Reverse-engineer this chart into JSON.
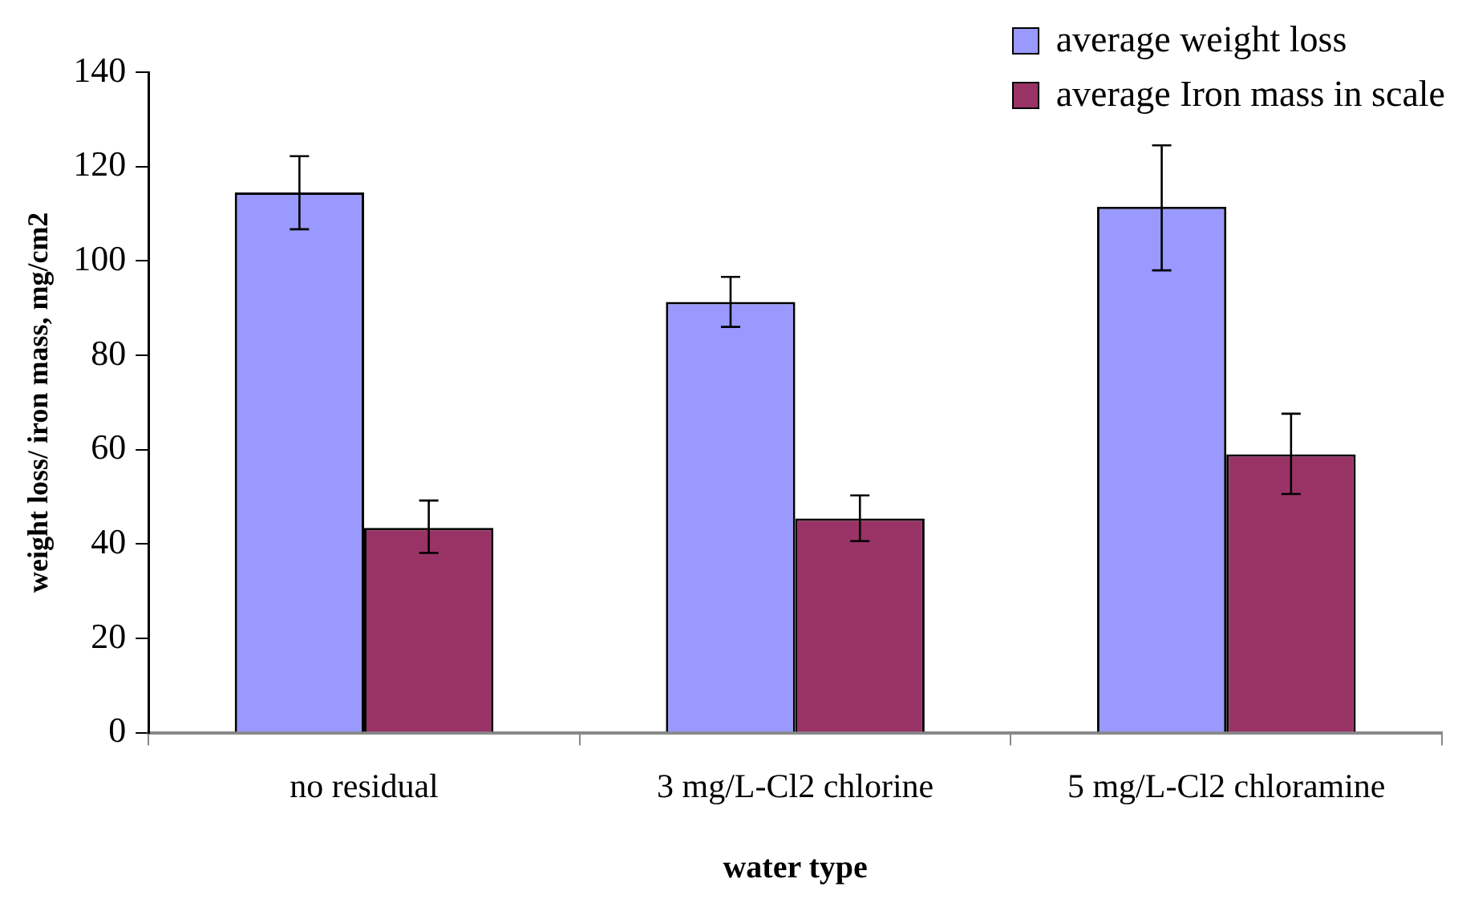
{
  "chart_data": {
    "type": "bar",
    "xlabel": "water type",
    "ylabel": "weight loss/ iron mass, mg/cm2",
    "categories": [
      "no residual",
      "3 mg/L-Cl2 chlorine",
      "5 mg/L-Cl2 chloramine"
    ],
    "series": [
      {
        "name": "average weight loss",
        "color": "#9999ff",
        "values": [
          114.5,
          91.3,
          111.5
        ],
        "errors": [
          [
            106.7,
            122.2
          ],
          [
            86.0,
            96.6
          ],
          [
            98.0,
            124.5
          ]
        ]
      },
      {
        "name": "average Iron mass in scale",
        "color": "#993366",
        "values": [
          43.4,
          45.4,
          59.0
        ],
        "errors": [
          [
            38.1,
            49.2
          ],
          [
            40.6,
            50.3
          ],
          [
            50.6,
            67.6
          ]
        ]
      }
    ],
    "ylim": [
      0,
      140
    ],
    "yticks": [
      0,
      20,
      40,
      60,
      80,
      100,
      120,
      140
    ],
    "grid": false,
    "legend": "top right"
  }
}
